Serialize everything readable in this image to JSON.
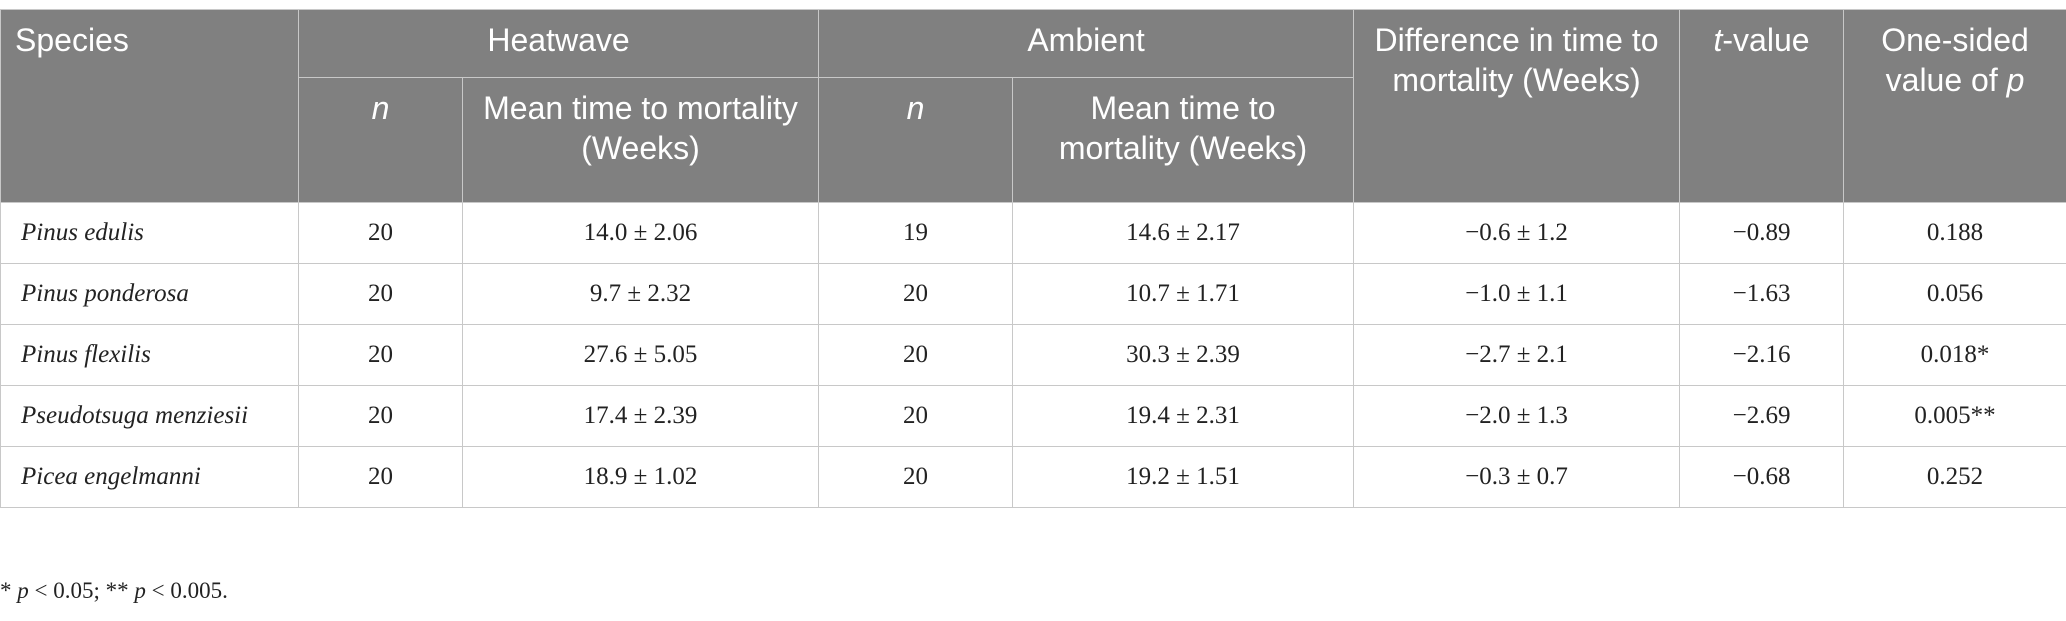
{
  "header": {
    "species": "Species",
    "heatwave": "Heatwave",
    "ambient": "Ambient",
    "subheaders": [
      "n",
      "Mean time to mortality (Weeks)",
      "n",
      "Mean time to mortality (Weeks)"
    ],
    "difference": "Difference in time to mortality (Weeks)",
    "t_value": [
      "t",
      "-value"
    ],
    "p_value": [
      "One-sided value of ",
      "p"
    ]
  },
  "rows": [
    [
      "Pinus edulis",
      "20",
      "14.0 ± 2.06",
      "19",
      "14.6 ± 2.17",
      "−0.6 ± 1.2",
      "−0.89",
      "0.188"
    ],
    [
      "Pinus ponderosa",
      "20",
      "9.7 ± 2.32",
      "20",
      "10.7 ± 1.71",
      "−1.0 ± 1.1",
      "−1.63",
      "0.056"
    ],
    [
      "Pinus flexilis",
      "20",
      "27.6 ± 5.05",
      "20",
      "30.3 ± 2.39",
      "−2.7 ± 2.1",
      "−2.16",
      "0.018*"
    ],
    [
      "Pseudotsuga menziesii",
      "20",
      "17.4 ± 2.39",
      "20",
      "19.4 ± 2.31",
      "−2.0 ± 1.3",
      "−2.69",
      "0.005**"
    ],
    [
      "Picea engelmanni",
      "20",
      "18.9 ± 1.02",
      "20",
      "19.2 ± 1.51",
      "−0.3 ± 0.7",
      "−0.68",
      "0.252"
    ]
  ],
  "footnote": [
    "* ",
    "p",
    " < 0.05; ** ",
    "p",
    " < 0.005."
  ]
}
